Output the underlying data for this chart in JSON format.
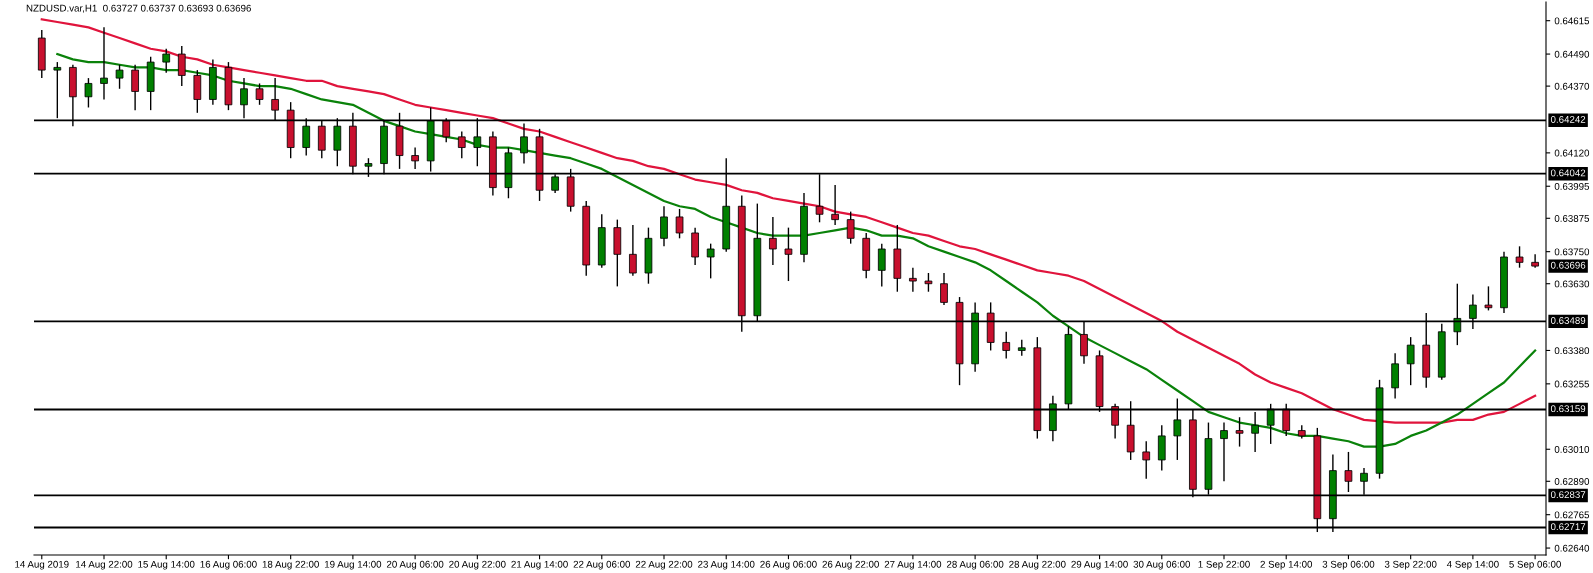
{
  "chart_data": {
    "type": "candlestick",
    "title": "NZDUSD.var,H1  0.63727 0.63737 0.63693 0.63696",
    "categories": [
      "14 Aug 2019",
      null,
      null,
      null,
      "14 Aug 22:00",
      null,
      null,
      null,
      "15 Aug 14:00",
      null,
      null,
      null,
      "16 Aug 06:00",
      null,
      null,
      null,
      "18 Aug 22:00",
      null,
      null,
      null,
      "19 Aug 14:00",
      null,
      null,
      null,
      "20 Aug 06:00",
      null,
      null,
      null,
      "20 Aug 22:00",
      null,
      null,
      null,
      "21 Aug 14:00",
      null,
      null,
      null,
      "22 Aug 06:00",
      null,
      null,
      null,
      "22 Aug 22:00",
      null,
      null,
      null,
      "23 Aug 14:00",
      null,
      null,
      null,
      "26 Aug 06:00",
      null,
      null,
      null,
      "26 Aug 22:00",
      null,
      null,
      null,
      "27 Aug 14:00",
      null,
      null,
      null,
      "28 Aug 06:00",
      null,
      null,
      null,
      "28 Aug 22:00",
      null,
      null,
      null,
      "29 Aug 14:00",
      null,
      null,
      null,
      "30 Aug 06:00",
      null,
      null,
      null,
      "1 Sep 22:00",
      null,
      null,
      null,
      "2 Sep 14:00",
      null,
      null,
      null,
      "3 Sep 06:00",
      null,
      null,
      null,
      "3 Sep 22:00",
      null,
      null,
      null,
      "4 Sep 14:00",
      null,
      null,
      null,
      "5 Sep 06:00"
    ],
    "ohlc": [
      [
        0.6455,
        0.6458,
        0.644,
        0.6443
      ],
      [
        0.6443,
        0.6446,
        0.6425,
        0.6444
      ],
      [
        0.6444,
        0.6445,
        0.6422,
        0.6433
      ],
      [
        0.6433,
        0.644,
        0.6429,
        0.6438
      ],
      [
        0.6438,
        0.6459,
        0.6432,
        0.644
      ],
      [
        0.644,
        0.6445,
        0.6436,
        0.6443
      ],
      [
        0.6443,
        0.6445,
        0.6428,
        0.6435
      ],
      [
        0.6435,
        0.6448,
        0.6428,
        0.6446
      ],
      [
        0.6446,
        0.6451,
        0.6442,
        0.6449
      ],
      [
        0.6449,
        0.6452,
        0.6437,
        0.6441
      ],
      [
        0.6441,
        0.6443,
        0.6427,
        0.6432
      ],
      [
        0.6432,
        0.6447,
        0.643,
        0.6444
      ],
      [
        0.6444,
        0.6446,
        0.6428,
        0.643
      ],
      [
        0.643,
        0.644,
        0.6425,
        0.6436
      ],
      [
        0.6436,
        0.6438,
        0.643,
        0.6432
      ],
      [
        0.6432,
        0.644,
        0.6424,
        0.6428
      ],
      [
        0.6428,
        0.6431,
        0.641,
        0.6414
      ],
      [
        0.6414,
        0.6425,
        0.6411,
        0.6422
      ],
      [
        0.6422,
        0.6424,
        0.641,
        0.6413
      ],
      [
        0.6413,
        0.6425,
        0.6407,
        0.6422
      ],
      [
        0.6422,
        0.6427,
        0.6404,
        0.6407
      ],
      [
        0.6407,
        0.641,
        0.6403,
        0.6408
      ],
      [
        0.6408,
        0.6424,
        0.6404,
        0.6422
      ],
      [
        0.6422,
        0.6427,
        0.6406,
        0.6411
      ],
      [
        0.6411,
        0.6414,
        0.6406,
        0.6409
      ],
      [
        0.6409,
        0.6429,
        0.6405,
        0.6424
      ],
      [
        0.6424,
        0.6425,
        0.6416,
        0.6418
      ],
      [
        0.6418,
        0.642,
        0.641,
        0.6414
      ],
      [
        0.6414,
        0.6425,
        0.6407,
        0.6418
      ],
      [
        0.6418,
        0.642,
        0.6396,
        0.6399
      ],
      [
        0.6399,
        0.6414,
        0.6395,
        0.6412
      ],
      [
        0.6412,
        0.6423,
        0.6408,
        0.6418
      ],
      [
        0.6418,
        0.6421,
        0.6394,
        0.6398
      ],
      [
        0.6398,
        0.6404,
        0.6397,
        0.6403
      ],
      [
        0.6403,
        0.6406,
        0.639,
        0.6392
      ],
      [
        0.6392,
        0.6394,
        0.6366,
        0.637
      ],
      [
        0.637,
        0.6389,
        0.6369,
        0.6384
      ],
      [
        0.6384,
        0.6387,
        0.6362,
        0.6374
      ],
      [
        0.6374,
        0.6385,
        0.6366,
        0.6367
      ],
      [
        0.6367,
        0.6384,
        0.6363,
        0.638
      ],
      [
        0.638,
        0.6392,
        0.6377,
        0.6388
      ],
      [
        0.6388,
        0.6391,
        0.638,
        0.6382
      ],
      [
        0.6382,
        0.6384,
        0.637,
        0.6373
      ],
      [
        0.6373,
        0.6378,
        0.6365,
        0.6376
      ],
      [
        0.6376,
        0.641,
        0.6375,
        0.6392
      ],
      [
        0.6392,
        0.6396,
        0.6345,
        0.6351
      ],
      [
        0.6351,
        0.6393,
        0.6349,
        0.638
      ],
      [
        0.638,
        0.6388,
        0.637,
        0.6376
      ],
      [
        0.6376,
        0.6384,
        0.6364,
        0.6374
      ],
      [
        0.6374,
        0.6397,
        0.6371,
        0.6392
      ],
      [
        0.6392,
        0.6404,
        0.6386,
        0.6389
      ],
      [
        0.6389,
        0.64,
        0.6385,
        0.6387
      ],
      [
        0.6387,
        0.639,
        0.6378,
        0.638
      ],
      [
        0.638,
        0.6382,
        0.6365,
        0.6368
      ],
      [
        0.6368,
        0.6378,
        0.6362,
        0.6376
      ],
      [
        0.6376,
        0.6385,
        0.636,
        0.6365
      ],
      [
        0.6365,
        0.6369,
        0.636,
        0.6364
      ],
      [
        0.6364,
        0.6367,
        0.636,
        0.6363
      ],
      [
        0.6363,
        0.6367,
        0.6355,
        0.6356
      ],
      [
        0.6356,
        0.6358,
        0.6325,
        0.6333
      ],
      [
        0.6333,
        0.6356,
        0.633,
        0.6352
      ],
      [
        0.6352,
        0.6356,
        0.6338,
        0.6341
      ],
      [
        0.6341,
        0.6345,
        0.6335,
        0.6338
      ],
      [
        0.6338,
        0.6342,
        0.6336,
        0.6339
      ],
      [
        0.6339,
        0.6343,
        0.6305,
        0.6308
      ],
      [
        0.6308,
        0.6321,
        0.6304,
        0.6318
      ],
      [
        0.6318,
        0.6347,
        0.6316,
        0.6344
      ],
      [
        0.6344,
        0.6349,
        0.6333,
        0.6336
      ],
      [
        0.6336,
        0.6338,
        0.6315,
        0.6317
      ],
      [
        0.6317,
        0.6318,
        0.6305,
        0.631
      ],
      [
        0.631,
        0.6319,
        0.6297,
        0.63
      ],
      [
        0.63,
        0.6304,
        0.629,
        0.6297
      ],
      [
        0.6297,
        0.631,
        0.6293,
        0.6306
      ],
      [
        0.6306,
        0.632,
        0.6297,
        0.6312
      ],
      [
        0.6312,
        0.6316,
        0.6283,
        0.6286
      ],
      [
        0.6286,
        0.6311,
        0.6284,
        0.6305
      ],
      [
        0.6305,
        0.6311,
        0.6289,
        0.6308
      ],
      [
        0.6308,
        0.6313,
        0.6302,
        0.6307
      ],
      [
        0.6307,
        0.6315,
        0.63,
        0.631
      ],
      [
        0.631,
        0.6318,
        0.6303,
        0.6316
      ],
      [
        0.6316,
        0.6318,
        0.6306,
        0.6308
      ],
      [
        0.6308,
        0.631,
        0.6305,
        0.6306
      ],
      [
        0.6306,
        0.6309,
        0.627,
        0.6275
      ],
      [
        0.6275,
        0.6299,
        0.627,
        0.6293
      ],
      [
        0.6293,
        0.63,
        0.6285,
        0.6289
      ],
      [
        0.6289,
        0.6294,
        0.6284,
        0.6292
      ],
      [
        0.6292,
        0.6327,
        0.629,
        0.6324
      ],
      [
        0.6324,
        0.6337,
        0.632,
        0.6333
      ],
      [
        0.6333,
        0.6343,
        0.6325,
        0.634
      ],
      [
        0.634,
        0.6352,
        0.6324,
        0.6328
      ],
      [
        0.6328,
        0.6348,
        0.6327,
        0.6345
      ],
      [
        0.6345,
        0.6363,
        0.634,
        0.635
      ],
      [
        0.635,
        0.6359,
        0.6346,
        0.6355
      ],
      [
        0.6355,
        0.6362,
        0.6353,
        0.6354
      ],
      [
        0.6354,
        0.6375,
        0.6352,
        0.6373
      ],
      [
        0.6373,
        0.6377,
        0.6369,
        0.6371
      ],
      [
        0.6371,
        0.6374,
        0.6369,
        0.63696
      ]
    ],
    "series": [
      {
        "type": "line",
        "color": "#e0143c",
        "values": [
          0.6462,
          0.6461,
          0.646,
          0.6459,
          0.6457,
          0.6455,
          0.6453,
          0.6451,
          0.645,
          0.6448,
          0.6447,
          0.6445,
          0.6444,
          0.6443,
          0.6442,
          0.6441,
          0.644,
          0.6439,
          0.6439,
          0.6437,
          0.6436,
          0.6435,
          0.6434,
          0.6432,
          0.643,
          0.6429,
          0.6428,
          0.6427,
          0.6426,
          0.6425,
          0.6423,
          0.6421,
          0.642,
          0.6418,
          0.6416,
          0.6414,
          0.6412,
          0.641,
          0.6409,
          0.6407,
          0.6406,
          0.6404,
          0.6402,
          0.6401,
          0.64,
          0.6398,
          0.6397,
          0.6395,
          0.6394,
          0.6393,
          0.6392,
          0.639,
          0.6389,
          0.6388,
          0.6386,
          0.6384,
          0.6382,
          0.6381,
          0.6379,
          0.6377,
          0.6376,
          0.6374,
          0.6372,
          0.637,
          0.6368,
          0.6367,
          0.6366,
          0.6364,
          0.6361,
          0.6358,
          0.6355,
          0.6352,
          0.6349,
          0.6345,
          0.6342,
          0.6339,
          0.6336,
          0.6333,
          0.6329,
          0.6326,
          0.6324,
          0.6322,
          0.6319,
          0.6316,
          0.6314,
          0.6312,
          null,
          0.6311,
          0.6311,
          0.6311,
          0.6311,
          0.6312,
          0.6312,
          0.6314,
          0.6315,
          0.6318,
          0.6321
        ]
      },
      {
        "type": "line",
        "color": "#0a820a",
        "values": [
          null,
          0.6449,
          0.6447,
          0.6446,
          0.6446,
          0.6445,
          0.6444,
          0.6444,
          0.6443,
          0.6443,
          0.6442,
          0.6441,
          0.6439,
          0.6438,
          0.6437,
          0.6437,
          0.6436,
          0.6434,
          0.6432,
          0.6431,
          0.643,
          0.6427,
          0.6424,
          0.6422,
          0.642,
          0.6419,
          0.6418,
          0.6417,
          0.6415,
          0.6414,
          0.6414,
          0.6413,
          0.6412,
          0.6411,
          0.641,
          0.6408,
          0.6406,
          0.6403,
          0.64,
          0.6397,
          0.6394,
          0.6392,
          0.6391,
          0.6388,
          0.6386,
          0.6384,
          0.6382,
          0.6381,
          0.6381,
          0.6381,
          0.6382,
          0.6383,
          0.6384,
          0.6383,
          0.6381,
          0.6381,
          0.638,
          0.6377,
          0.6375,
          0.6373,
          0.6371,
          0.6368,
          0.6364,
          0.636,
          0.6356,
          0.6351,
          0.6347,
          0.6343,
          0.634,
          0.6337,
          0.6334,
          0.6331,
          0.6327,
          0.6323,
          0.6319,
          0.6315,
          0.6313,
          0.6311,
          0.631,
          0.6309,
          0.6307,
          0.6306,
          0.6306,
          0.6305,
          0.6304,
          0.6302,
          0.6302,
          0.6303,
          0.6306,
          0.6308,
          0.6311,
          0.6314,
          0.6318,
          0.6322,
          0.6326,
          0.6332,
          0.6338
        ]
      }
    ],
    "ref_lines": [
      {
        "axis": "y",
        "value": 0.64242,
        "label": "0.64242",
        "color": "#000000"
      },
      {
        "axis": "y",
        "value": 0.64042,
        "label": "0.64042",
        "color": "#000000"
      },
      {
        "axis": "y",
        "value": 0.63489,
        "label": "0.63489",
        "color": "#000000"
      },
      {
        "axis": "y",
        "value": 0.63159,
        "label": "0.63159",
        "color": "#000000"
      },
      {
        "axis": "y",
        "value": 0.62837,
        "label": "0.62837",
        "color": "#000000"
      },
      {
        "axis": "y",
        "value": 0.62717,
        "label": "0.62717",
        "color": "#000000"
      }
    ],
    "annotations": [
      "0.63696"
    ],
    "ylim": [
      0.62614,
      0.64685
    ],
    "yticks": [
      0.64615,
      {
        "value": 0.6449,
        "label": "0.64490"
      },
      {
        "value": 0.6437,
        "label": "0.64370"
      },
      {
        "value": 0.6412,
        "label": "0.64120"
      },
      0.63995,
      0.63875,
      {
        "value": 0.6375,
        "label": "0.63750"
      },
      {
        "value": 0.6363,
        "label": "0.63630"
      },
      {
        "value": 0.6338,
        "label": "0.63380"
      },
      0.63255,
      {
        "value": 0.6301,
        "label": "0.63010"
      },
      {
        "value": 0.6289,
        "label": "0.62890"
      },
      0.62765,
      {
        "value": 0.6264,
        "label": "0.62640"
      }
    ],
    "grid": false,
    "legend": false
  }
}
